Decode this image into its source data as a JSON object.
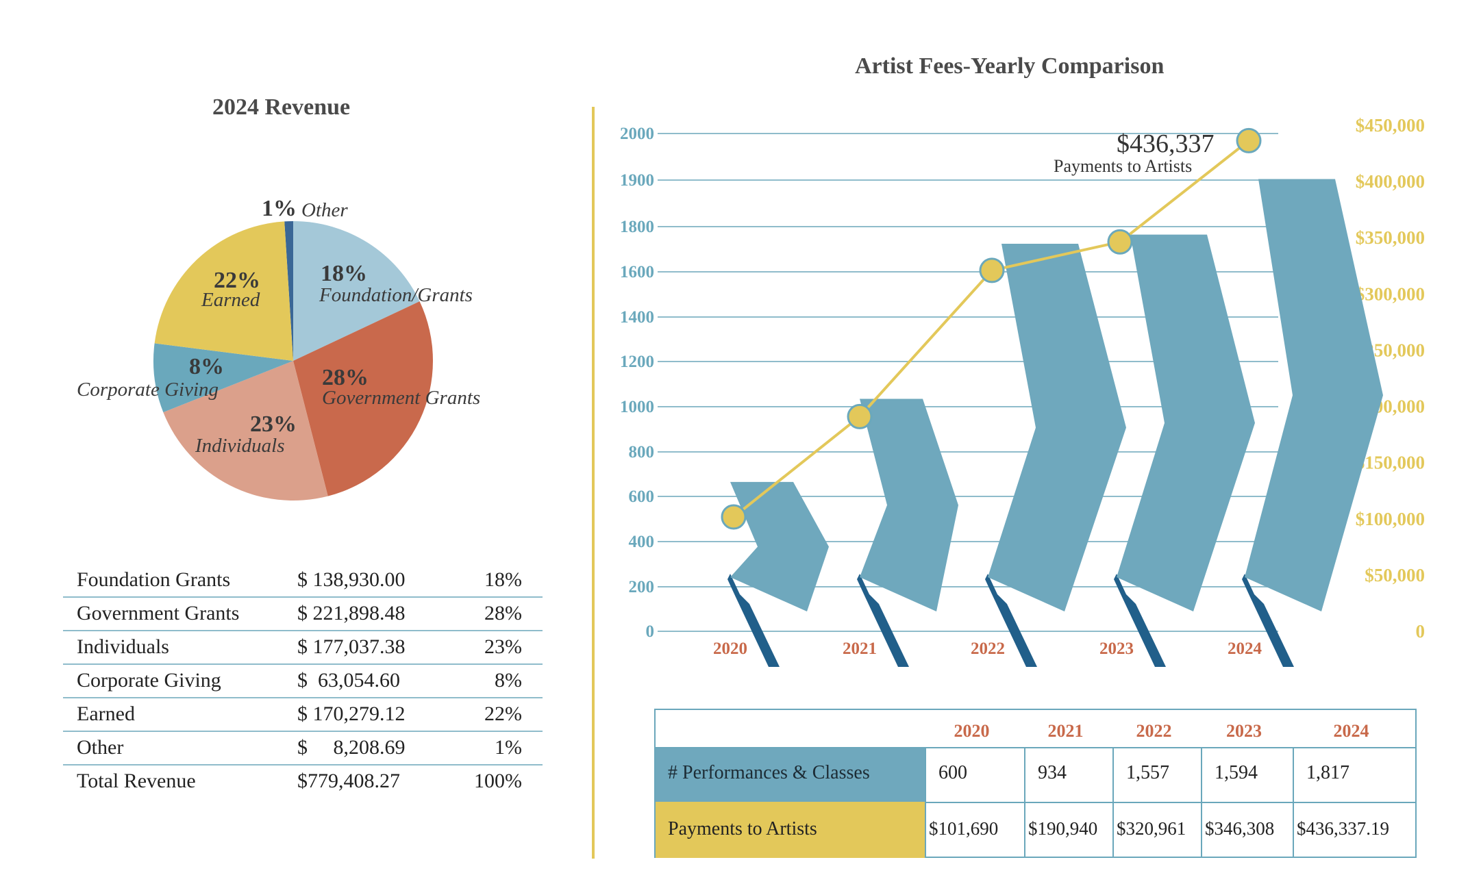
{
  "revenue": {
    "title": "2024  Revenue",
    "pie_labels": [
      {
        "pct": "1%",
        "name": "Other"
      },
      {
        "pct": "18%",
        "name": "Foundation/Grants"
      },
      {
        "pct": "28%",
        "name": "Government Grants"
      },
      {
        "pct": "23%",
        "name": "Individuals"
      },
      {
        "pct": "8%",
        "name": "Corporate Giving"
      },
      {
        "pct": "22%",
        "name": "Earned"
      }
    ],
    "table": [
      {
        "label": "Foundation Grants",
        "amount": "$ 138,930.00",
        "pct": "18%"
      },
      {
        "label": "Government Grants",
        "amount": "$ 221,898.48",
        "pct": "28%"
      },
      {
        "label": "Individuals",
        "amount": "$ 177,037.38",
        "pct": "23%"
      },
      {
        "label": "Corporate Giving",
        "amount": "$  63,054.60",
        "pct": "8%"
      },
      {
        "label": "Earned",
        "amount": "$ 170,279.12",
        "pct": "22%"
      },
      {
        "label": "Other",
        "amount": "$     8,208.69",
        "pct": "1%"
      },
      {
        "label": "Total Revenue",
        "amount": "$779,408.27",
        "pct": "100%"
      }
    ]
  },
  "fees": {
    "title": "Artist Fees-Yearly Comparison",
    "annotation_value": "$436,337",
    "annotation_label": "Payments to Artists",
    "table": {
      "years": [
        "2020",
        "2021",
        "2022",
        "2023",
        "2024"
      ],
      "row1_label": "# Performances & Classes",
      "row1": [
        "600",
        "934",
        "1,557",
        "1,594",
        "1,817"
      ],
      "row2_label": "Payments to Artists",
      "row2": [
        "$101,690",
        "$190,940",
        "$320,961",
        "$346,308",
        "$436,337.19"
      ]
    }
  },
  "chart_data": [
    {
      "type": "pie",
      "title": "2024  Revenue",
      "categories": [
        "Other",
        "Foundation/Grants",
        "Government Grants",
        "Individuals",
        "Corporate Giving",
        "Earned"
      ],
      "values": [
        1,
        18,
        28,
        23,
        8,
        22
      ],
      "colors": [
        "#3a6796",
        "#a4c8d8",
        "#c9694c",
        "#dba08b",
        "#6aa8bc",
        "#e3c85a"
      ]
    },
    {
      "type": "bar",
      "title": "Artist Fees-Yearly Comparison",
      "categories": [
        "2020",
        "2021",
        "2022",
        "2023",
        "2024"
      ],
      "series": [
        {
          "name": "# Performances & Classes",
          "values": [
            600,
            934,
            1557,
            1594,
            1817
          ],
          "axis": "left",
          "color": "#6fa8bd"
        },
        {
          "name": "Payments to Artists",
          "type": "line",
          "values": [
            101690,
            190940,
            320961,
            346308,
            436337.19
          ],
          "axis": "right",
          "color": "#e3c85a"
        }
      ],
      "left_ticks": [
        "0",
        "200",
        "400",
        "600",
        "800",
        "1000",
        "1200",
        "1400",
        "1600",
        "1800",
        "1900",
        "2000"
      ],
      "right_ticks": [
        "0",
        "$50,000",
        "$100,000",
        "$150,000",
        "$200,000",
        "$250,000",
        "$300,000",
        "$350,000",
        "$400,000",
        "$450,000"
      ],
      "ylim_left": [
        0,
        2000
      ],
      "ylim_right": [
        0,
        450000
      ],
      "grid": true
    }
  ]
}
